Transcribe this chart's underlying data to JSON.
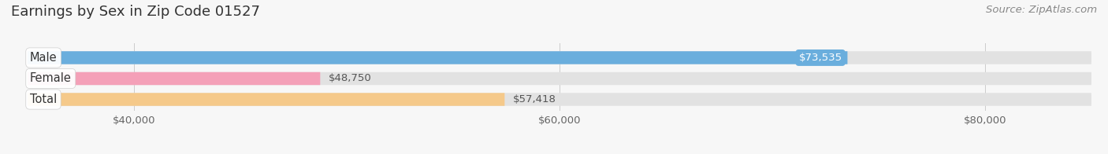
{
  "title": "Earnings by Sex in Zip Code 01527",
  "source": "Source: ZipAtlas.com",
  "categories": [
    "Male",
    "Female",
    "Total"
  ],
  "values": [
    73535,
    48750,
    57418
  ],
  "bar_colors": [
    "#6aaedd",
    "#f4a0b8",
    "#f5c98a"
  ],
  "bar_bg_color": "#e2e2e2",
  "value_label_inside": [
    true,
    false,
    false
  ],
  "value_label_colors_inside": [
    "white",
    "#666666",
    "#666666"
  ],
  "xmin": 35000,
  "xmax": 85000,
  "xticks": [
    40000,
    60000,
    80000
  ],
  "xtick_labels": [
    "$40,000",
    "$60,000",
    "$80,000"
  ],
  "background_color": "#f7f7f7",
  "title_fontsize": 13,
  "source_fontsize": 9.5,
  "label_fontsize": 9.5,
  "tick_fontsize": 9.5,
  "cat_fontsize": 10.5
}
